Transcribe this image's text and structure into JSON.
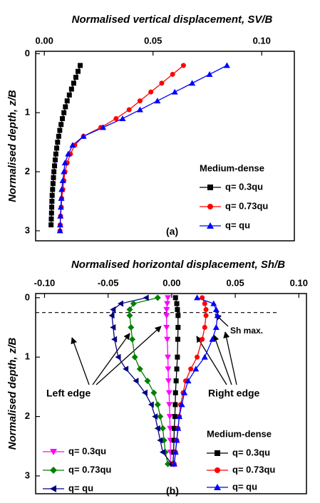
{
  "chart_data": [
    {
      "type": "line",
      "title": "Normalised vertical displacement, SV/B",
      "y_label": "Normalised depth, z/B",
      "xlim": [
        -0.004,
        0.115
      ],
      "ylim": [
        -0.04,
        3.17
      ],
      "y_inverted": true,
      "xticks": [
        {
          "value": 0,
          "label": "0.00"
        },
        {
          "value": 0.05,
          "label": "0.05"
        },
        {
          "value": 0.1,
          "label": "0.10"
        }
      ],
      "yticks": [
        0,
        1,
        2,
        3
      ],
      "legend_title": "Medium-dense",
      "annotations": [
        "(a)"
      ],
      "series": [
        {
          "name": "q= 0.3qu",
          "color": "#000000",
          "marker": "square",
          "legend": "lower right",
          "x": [
            0.0165,
            0.0155,
            0.0145,
            0.0135,
            0.0125,
            0.0115,
            0.0105,
            0.0097,
            0.009,
            0.0083,
            0.0077,
            0.0071,
            0.0066,
            0.0061,
            0.0057,
            0.0053,
            0.005,
            0.0047,
            0.0044,
            0.0042,
            0.004,
            0.0038,
            0.0036,
            0.0035,
            0.0034,
            0.0033,
            0.0032,
            0.0031
          ],
          "y": [
            0.2,
            0.3,
            0.4,
            0.5,
            0.6,
            0.7,
            0.8,
            0.9,
            1.0,
            1.1,
            1.2,
            1.3,
            1.4,
            1.5,
            1.6,
            1.7,
            1.8,
            1.9,
            2.0,
            2.1,
            2.2,
            2.3,
            2.4,
            2.5,
            2.6,
            2.7,
            2.8,
            2.9
          ]
        },
        {
          "name": "q= 0.73qu",
          "color": "#ff0000",
          "marker": "circle",
          "legend": "lower right",
          "x": [
            0.064,
            0.059,
            0.054,
            0.049,
            0.044,
            0.039,
            0.033,
            0.026,
            0.018,
            0.014,
            0.012,
            0.0105,
            0.0095,
            0.009,
            0.0085,
            0.008,
            0.0078,
            0.0075,
            0.0073,
            0.0072
          ],
          "y": [
            0.2,
            0.35,
            0.5,
            0.65,
            0.8,
            0.95,
            1.1,
            1.25,
            1.4,
            1.55,
            1.7,
            1.85,
            2.0,
            2.15,
            2.3,
            2.45,
            2.6,
            2.75,
            2.9,
            3.0
          ]
        },
        {
          "name": "q= qu",
          "color": "#0000ff",
          "marker": "triangle-up",
          "legend": "lower right",
          "x": [
            0.084,
            0.076,
            0.068,
            0.06,
            0.052,
            0.044,
            0.036,
            0.027,
            0.018,
            0.013,
            0.011,
            0.0095,
            0.009,
            0.0085,
            0.008,
            0.0078,
            0.0076,
            0.0074,
            0.0073,
            0.0072
          ],
          "y": [
            0.2,
            0.35,
            0.5,
            0.65,
            0.8,
            0.95,
            1.1,
            1.25,
            1.4,
            1.55,
            1.7,
            1.85,
            2.0,
            2.15,
            2.3,
            2.45,
            2.6,
            2.75,
            2.9,
            3.0
          ]
        }
      ]
    },
    {
      "type": "line",
      "title": "Normalised horizontal displacement, Sh/B",
      "y_label": "Normalised depth, z/B",
      "xlim": [
        -0.107,
        0.106
      ],
      "ylim": [
        -0.07,
        3.3
      ],
      "y_inverted": true,
      "xticks": [
        {
          "value": -0.1,
          "label": "-0.10"
        },
        {
          "value": -0.05,
          "label": "-0.05"
        },
        {
          "value": 0,
          "label": "0.00"
        },
        {
          "value": 0.05,
          "label": "0.05"
        },
        {
          "value": 0.1,
          "label": "0.10"
        }
      ],
      "yticks": [
        0,
        1,
        2,
        3
      ],
      "hline": 0.25,
      "legend_title": "Medium-dense",
      "annotations": [
        "Left edge",
        "Right edge",
        "Sh max.",
        "(b)"
      ],
      "series": [
        {
          "name": "q= 0.3qu",
          "color": "#ff00ff",
          "marker": "triangle-down",
          "legend": "lower left",
          "x": [
            -0.003,
            -0.0035,
            -0.004,
            -0.004,
            -0.004,
            -0.0035,
            -0.003,
            -0.0028,
            -0.0025,
            -0.002,
            -0.0018,
            -0.0015,
            -0.0012,
            -0.001,
            -0.001,
            -0.001
          ],
          "y": [
            0,
            0.1,
            0.2,
            0.3,
            0.5,
            0.7,
            1.0,
            1.2,
            1.4,
            1.6,
            1.8,
            2.0,
            2.2,
            2.4,
            2.6,
            2.8
          ]
        },
        {
          "name": "q= 0.73qu",
          "color": "#008000",
          "marker": "diamond",
          "legend": "lower left",
          "x": [
            -0.011,
            -0.03,
            -0.033,
            -0.033,
            -0.032,
            -0.031,
            -0.029,
            -0.025,
            -0.019,
            -0.014,
            -0.011,
            -0.009,
            -0.007,
            -0.006,
            -0.005,
            -0.003
          ],
          "y": [
            0,
            0.1,
            0.2,
            0.3,
            0.5,
            0.7,
            1.0,
            1.2,
            1.4,
            1.6,
            1.8,
            2.0,
            2.2,
            2.4,
            2.6,
            2.8
          ]
        },
        {
          "name": "q= qu",
          "color": "#000080",
          "marker": "triangle-left",
          "legend": "lower left",
          "x": [
            -0.02,
            -0.04,
            -0.046,
            -0.047,
            -0.046,
            -0.045,
            -0.042,
            -0.036,
            -0.028,
            -0.021,
            -0.016,
            -0.013,
            -0.011,
            -0.009,
            -0.007,
            0.0
          ],
          "y": [
            0,
            0.1,
            0.2,
            0.3,
            0.5,
            0.7,
            1.0,
            1.2,
            1.4,
            1.6,
            1.8,
            2.0,
            2.2,
            2.4,
            2.6,
            2.8
          ]
        },
        {
          "name": "q= 0.3qu",
          "color": "#000000",
          "marker": "square",
          "legend": "lower right",
          "x": [
            0.003,
            0.004,
            0.0045,
            0.005,
            0.005,
            0.0048,
            0.0045,
            0.004,
            0.0035,
            0.003,
            0.0028,
            0.0025,
            0.002,
            0.0018,
            0.0015,
            0.001
          ],
          "y": [
            0,
            0.1,
            0.2,
            0.3,
            0.5,
            0.7,
            1.0,
            1.2,
            1.4,
            1.6,
            1.8,
            2.0,
            2.2,
            2.4,
            2.6,
            2.8
          ]
        },
        {
          "name": "q= 0.73qu",
          "color": "#ff0000",
          "marker": "circle",
          "legend": "lower right",
          "x": [
            0.024,
            0.026,
            0.027,
            0.027,
            0.026,
            0.024,
            0.02,
            0.015,
            0.011,
            0.009,
            0.007,
            0.006,
            0.005,
            0.004,
            0.003,
            0.002
          ],
          "y": [
            0,
            0.1,
            0.2,
            0.3,
            0.5,
            0.7,
            1.0,
            1.2,
            1.4,
            1.6,
            1.8,
            2.0,
            2.2,
            2.4,
            2.6,
            2.8
          ]
        },
        {
          "name": "q= qu",
          "color": "#0000ff",
          "marker": "triangle-up",
          "legend": "lower right",
          "x": [
            0.02,
            0.033,
            0.035,
            0.036,
            0.035,
            0.032,
            0.026,
            0.019,
            0.013,
            0.01,
            0.008,
            0.006,
            0.005,
            0.004,
            0.003,
            0.002
          ],
          "y": [
            0,
            0.1,
            0.2,
            0.3,
            0.5,
            0.7,
            1.0,
            1.2,
            1.4,
            1.6,
            1.8,
            2.0,
            2.2,
            2.4,
            2.6,
            2.8
          ]
        }
      ]
    }
  ]
}
